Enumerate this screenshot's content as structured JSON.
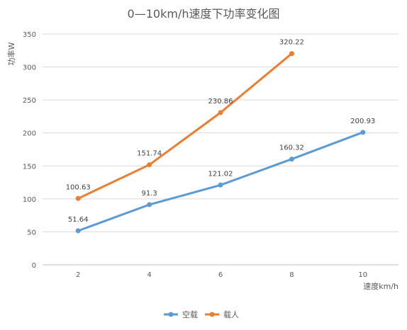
{
  "chart_data": {
    "type": "line",
    "title": "0—10km/h速度下功率变化图",
    "xlabel": "速度km/h",
    "ylabel": "功率W",
    "categories": [
      "2",
      "4",
      "6",
      "8",
      "10"
    ],
    "ylim": [
      0,
      350
    ],
    "yticks": [
      "0",
      "50",
      "100",
      "150",
      "200",
      "250",
      "300",
      "350"
    ],
    "grid": true,
    "legend_position": "bottom",
    "series": [
      {
        "name": "空载",
        "color": "#5b9bd5",
        "values": [
          51.64,
          91.3,
          121.02,
          160.32,
          200.93
        ],
        "labels": [
          "51.64",
          "91.3",
          "121.02",
          "160.32",
          "200.93"
        ]
      },
      {
        "name": "载人",
        "color": "#ed7d31",
        "values": [
          100.63,
          151.74,
          230.86,
          320.22,
          null
        ],
        "labels": [
          "100.63",
          "151.74",
          "230.86",
          "320.22",
          ""
        ]
      }
    ]
  }
}
